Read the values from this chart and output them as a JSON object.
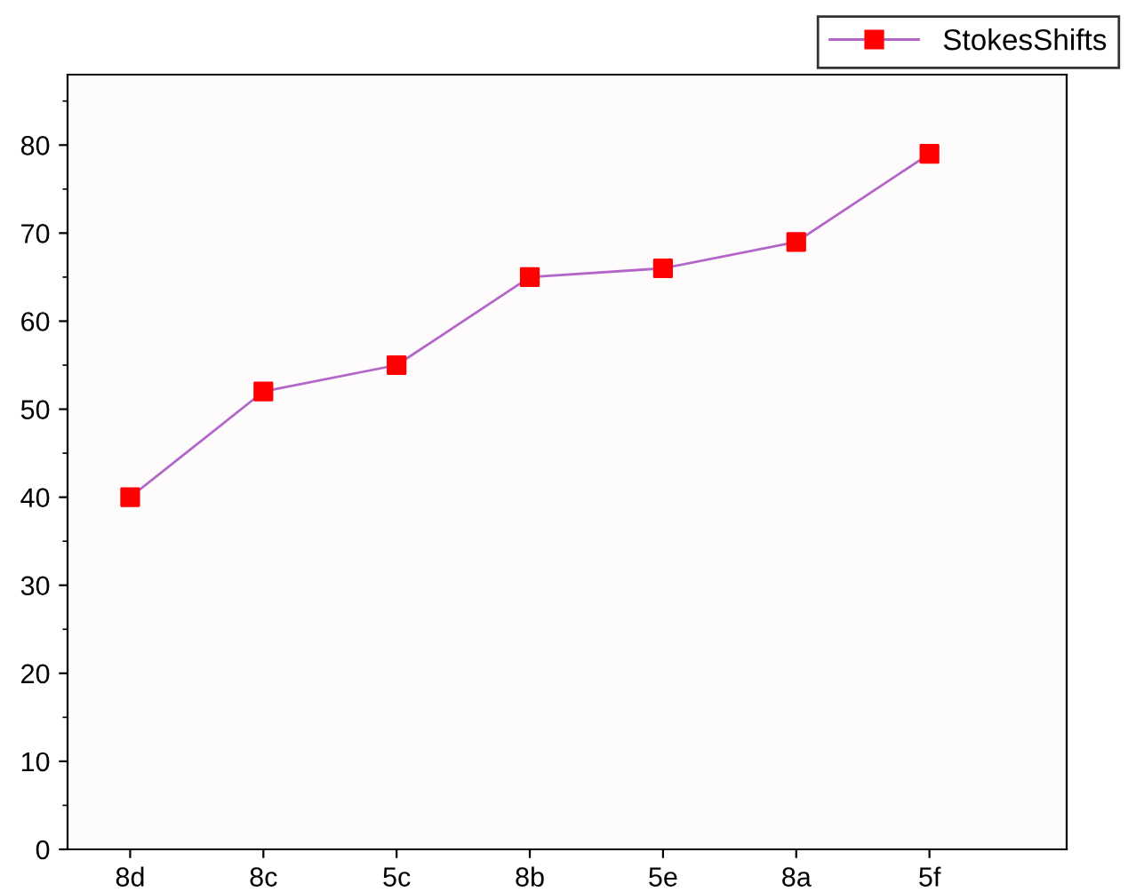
{
  "chart_data": {
    "type": "line",
    "categories": [
      "8d",
      "8c",
      "5c",
      "8b",
      "5e",
      "8a",
      "5f"
    ],
    "series": [
      {
        "name": "StokesShifts",
        "color": "#b366c8",
        "colors": [
          "#ff0000",
          "#ff0000",
          "#ff0000",
          "#ff0000",
          "#ff0000",
          "#ff0000",
          "#ff0000"
        ],
        "values": [
          40,
          52,
          55,
          65,
          66,
          69,
          79
        ]
      }
    ],
    "ylim": [
      0,
      88
    ],
    "yticks": [
      0,
      10,
      20,
      30,
      40,
      50,
      60,
      70,
      80
    ],
    "grid": false,
    "legend": "top right",
    "marker": "square",
    "line_style": "solid"
  }
}
